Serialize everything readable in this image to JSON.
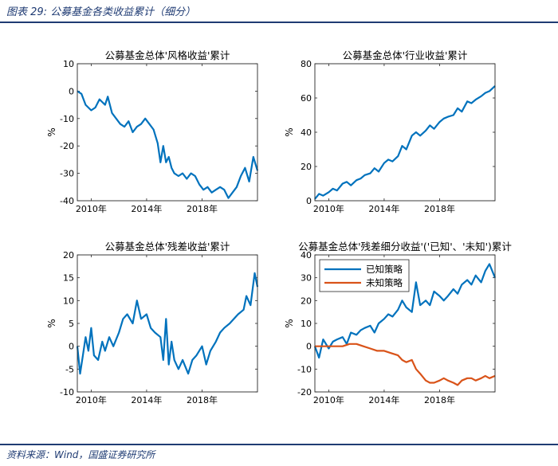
{
  "header": {
    "title": "图表 29:  公募基金各类收益累计（细分）"
  },
  "footer": {
    "source": "资料来源：Wind，国盛证券研究所"
  },
  "chart_data": [
    {
      "type": "line",
      "title": "公募基金总体'风格收益'累计",
      "ylabel": "%",
      "xlim": [
        2009.0,
        2022.0
      ],
      "ylim": [
        -40,
        10
      ],
      "yticks": [
        -40,
        -30,
        -20,
        -10,
        0,
        10
      ],
      "xticks": [
        2010,
        2014,
        2018
      ],
      "xtick_labels": [
        "2010年",
        "2014年",
        "2018年"
      ],
      "series": [
        {
          "color": "#0072bd",
          "x": [
            2009.0,
            2009.3,
            2009.6,
            2010.0,
            2010.3,
            2010.6,
            2011.0,
            2011.2,
            2011.5,
            2011.8,
            2012.1,
            2012.4,
            2012.7,
            2013.0,
            2013.3,
            2013.6,
            2013.9,
            2014.2,
            2014.5,
            2014.8,
            2015.0,
            2015.2,
            2015.4,
            2015.6,
            2015.8,
            2016.0,
            2016.3,
            2016.6,
            2016.9,
            2017.2,
            2017.5,
            2017.8,
            2018.1,
            2018.4,
            2018.7,
            2019.0,
            2019.3,
            2019.6,
            2019.9,
            2020.2,
            2020.5,
            2020.8,
            2021.1,
            2021.4,
            2021.7,
            2022.0
          ],
          "y": [
            0,
            -1,
            -5,
            -7,
            -6,
            -3,
            -5,
            -2,
            -8,
            -10,
            -12,
            -13,
            -11,
            -15,
            -13,
            -12,
            -10,
            -12,
            -14,
            -19,
            -26,
            -20,
            -26,
            -24,
            -28,
            -30,
            -31,
            -30,
            -32,
            -30,
            -31,
            -34,
            -36,
            -35,
            -37,
            -36,
            -35,
            -36,
            -39,
            -37,
            -35,
            -31,
            -28,
            -33,
            -24,
            -29
          ]
        }
      ]
    },
    {
      "type": "line",
      "title": "公募基金总体'行业收益'累计",
      "ylabel": "%",
      "xlim": [
        2009.0,
        2022.0
      ],
      "ylim": [
        0,
        80
      ],
      "yticks": [
        0,
        20,
        40,
        60,
        80
      ],
      "xticks": [
        2010,
        2014,
        2018
      ],
      "xtick_labels": [
        "2010年",
        "2014年",
        "2018年"
      ],
      "series": [
        {
          "color": "#0072bd",
          "x": [
            2009.0,
            2009.3,
            2009.6,
            2010.0,
            2010.3,
            2010.6,
            2011.0,
            2011.3,
            2011.6,
            2012.0,
            2012.3,
            2012.6,
            2013.0,
            2013.3,
            2013.6,
            2014.0,
            2014.3,
            2014.6,
            2015.0,
            2015.3,
            2015.6,
            2016.0,
            2016.3,
            2016.6,
            2017.0,
            2017.3,
            2017.6,
            2018.0,
            2018.3,
            2018.6,
            2019.0,
            2019.3,
            2019.6,
            2020.0,
            2020.3,
            2020.6,
            2021.0,
            2021.3,
            2021.6,
            2022.0
          ],
          "y": [
            1,
            4,
            3,
            5,
            7,
            6,
            10,
            11,
            9,
            12,
            13,
            15,
            16,
            19,
            17,
            22,
            24,
            23,
            26,
            32,
            30,
            38,
            40,
            38,
            41,
            44,
            42,
            46,
            48,
            49,
            50,
            54,
            52,
            58,
            57,
            59,
            61,
            63,
            64,
            67
          ]
        }
      ]
    },
    {
      "type": "line",
      "title": "公募基金总体'残差收益'累计",
      "ylabel": "%",
      "xlim": [
        2009.0,
        2022.0
      ],
      "ylim": [
        -10,
        20
      ],
      "yticks": [
        -10,
        -5,
        0,
        5,
        10,
        15,
        20
      ],
      "xticks": [
        2010,
        2014,
        2018
      ],
      "xtick_labels": [
        "2010年",
        "2014年",
        "2018年"
      ],
      "series": [
        {
          "color": "#0072bd",
          "x": [
            2009.0,
            2009.2,
            2009.4,
            2009.6,
            2009.8,
            2010.0,
            2010.2,
            2010.5,
            2010.8,
            2011.0,
            2011.3,
            2011.6,
            2012.0,
            2012.3,
            2012.6,
            2013.0,
            2013.3,
            2013.6,
            2014.0,
            2014.3,
            2014.6,
            2015.0,
            2015.2,
            2015.4,
            2015.6,
            2015.8,
            2016.0,
            2016.3,
            2016.6,
            2017.0,
            2017.3,
            2017.6,
            2018.0,
            2018.3,
            2018.6,
            2019.0,
            2019.3,
            2019.6,
            2020.0,
            2020.3,
            2020.6,
            2021.0,
            2021.2,
            2021.5,
            2021.8,
            2022.0
          ],
          "y": [
            0,
            -6,
            -2,
            2,
            -1,
            4,
            -2,
            -3,
            1,
            -1,
            2,
            0,
            3,
            6,
            7,
            5,
            10,
            6,
            7,
            4,
            3,
            2,
            -3,
            6,
            -4,
            1,
            -3,
            -5,
            -3,
            -6,
            -3,
            -2,
            0,
            -4,
            -1,
            1,
            3,
            4,
            5,
            6,
            7,
            8,
            11,
            9,
            16,
            13
          ]
        }
      ]
    },
    {
      "type": "line",
      "title": "公募基金总体'残差细分收益'('已知'、'未知')累计",
      "ylabel": "%",
      "xlim": [
        2009.0,
        2022.0
      ],
      "ylim": [
        -20,
        40
      ],
      "yticks": [
        -20,
        -10,
        0,
        10,
        20,
        30,
        40
      ],
      "xticks": [
        2010,
        2014,
        2018
      ],
      "xtick_labels": [
        "2010年",
        "2014年",
        "2018年"
      ],
      "legend": "top-left",
      "series": [
        {
          "name": "已知策略",
          "color": "#0072bd",
          "x": [
            2009.0,
            2009.3,
            2009.6,
            2010.0,
            2010.3,
            2010.6,
            2011.0,
            2011.3,
            2011.6,
            2012.0,
            2012.3,
            2012.6,
            2013.0,
            2013.3,
            2013.6,
            2014.0,
            2014.3,
            2014.6,
            2015.0,
            2015.3,
            2015.6,
            2016.0,
            2016.3,
            2016.6,
            2017.0,
            2017.3,
            2017.6,
            2018.0,
            2018.3,
            2018.6,
            2019.0,
            2019.3,
            2019.6,
            2020.0,
            2020.3,
            2020.6,
            2021.0,
            2021.3,
            2021.6,
            2022.0
          ],
          "y": [
            0,
            -5,
            3,
            -1,
            2,
            3,
            4,
            1,
            6,
            5,
            7,
            8,
            9,
            6,
            10,
            12,
            14,
            13,
            16,
            20,
            17,
            15,
            28,
            18,
            20,
            18,
            24,
            22,
            20,
            22,
            25,
            23,
            27,
            29,
            27,
            31,
            28,
            33,
            36,
            30
          ]
        },
        {
          "name": "未知策略",
          "color": "#d95319",
          "x": [
            2009.0,
            2009.5,
            2010.0,
            2010.5,
            2011.0,
            2011.5,
            2012.0,
            2012.5,
            2013.0,
            2013.5,
            2014.0,
            2014.5,
            2015.0,
            2015.3,
            2015.6,
            2016.0,
            2016.3,
            2016.6,
            2017.0,
            2017.3,
            2017.6,
            2018.0,
            2018.3,
            2018.6,
            2019.0,
            2019.3,
            2019.6,
            2020.0,
            2020.3,
            2020.6,
            2021.0,
            2021.3,
            2021.6,
            2022.0
          ],
          "y": [
            0,
            0,
            0,
            0,
            0,
            1,
            1,
            0,
            -1,
            -2,
            -2,
            -3,
            -4,
            -6,
            -7,
            -6,
            -10,
            -12,
            -15,
            -16,
            -16,
            -15,
            -14,
            -15,
            -16,
            -17,
            -15,
            -14,
            -14,
            -15,
            -14,
            -13,
            -14,
            -13
          ]
        }
      ]
    }
  ]
}
